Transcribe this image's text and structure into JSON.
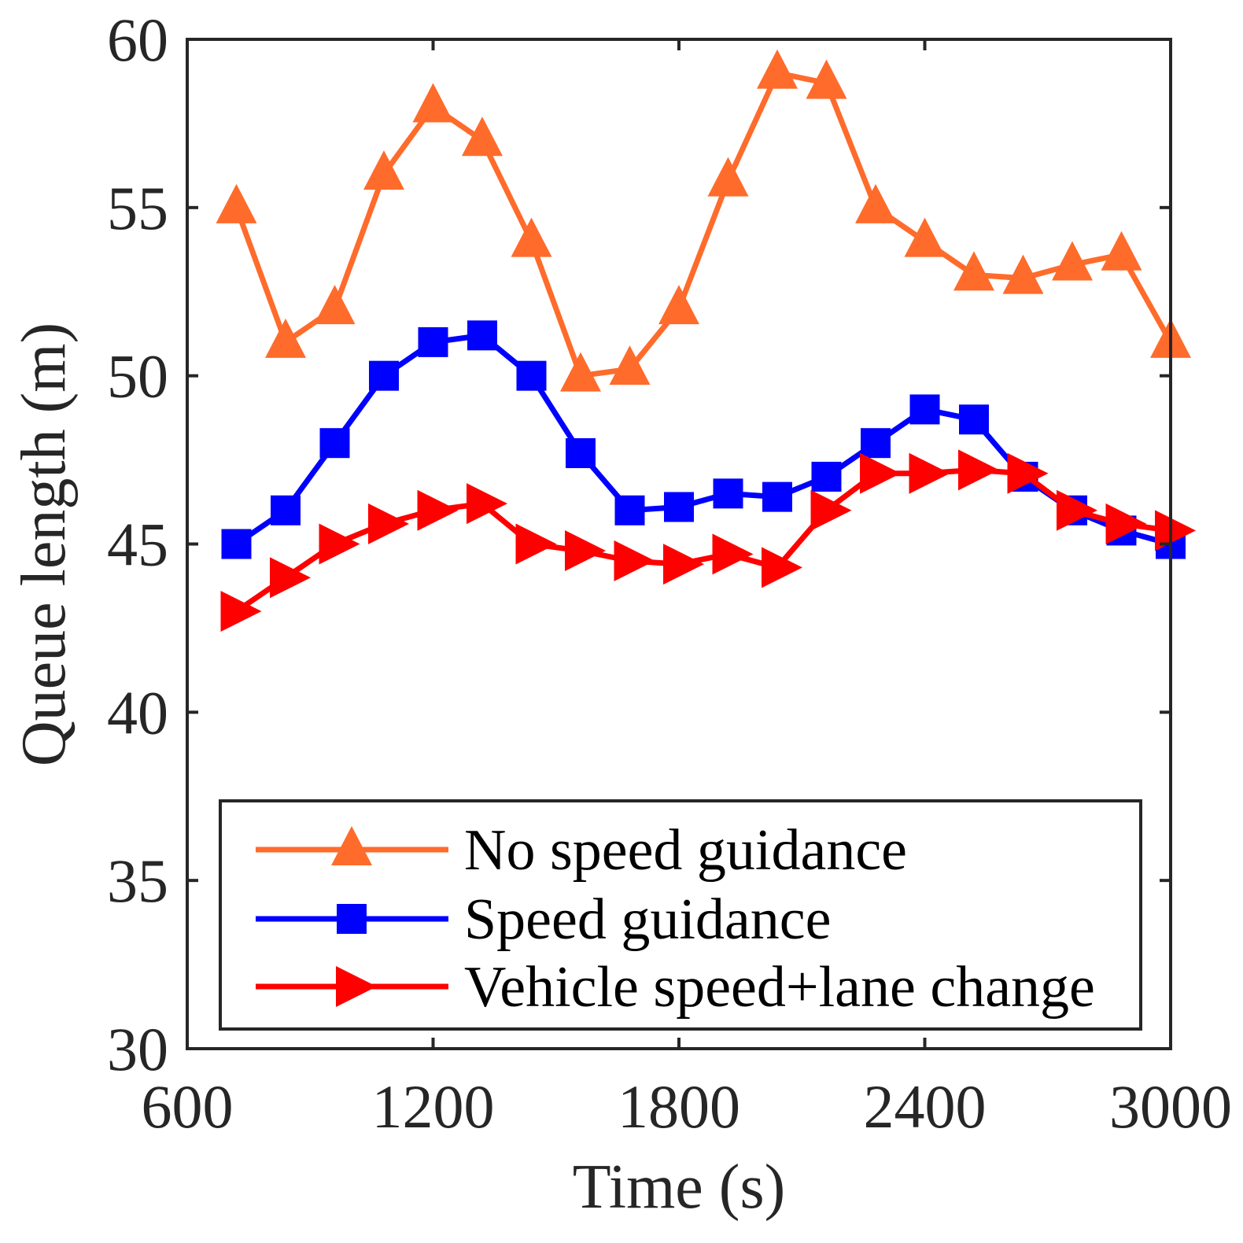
{
  "chart_data": {
    "type": "line",
    "title": "",
    "xlabel": "Time (s)",
    "ylabel": "Queue length (m)",
    "xlim": [
      600,
      3000
    ],
    "ylim": [
      30,
      60
    ],
    "xticks": [
      600,
      1200,
      1800,
      2400,
      3000
    ],
    "yticks": [
      30,
      35,
      40,
      45,
      50,
      55,
      60
    ],
    "grid": false,
    "legend_position": "bottom-right",
    "x": [
      720,
      840,
      960,
      1080,
      1200,
      1320,
      1440,
      1560,
      1680,
      1800,
      1920,
      2040,
      2160,
      2280,
      2400,
      2520,
      2640,
      2760,
      2880,
      3000
    ],
    "series": [
      {
        "name": "No speed guidance",
        "color": "#FF6B2B",
        "marker": "triangle-up",
        "values": [
          55.0,
          51.0,
          52.0,
          56.0,
          58.0,
          57.0,
          54.0,
          50.0,
          50.2,
          52.0,
          55.8,
          59.0,
          58.7,
          55.0,
          54.0,
          53.0,
          52.9,
          53.3,
          53.6,
          51.0
        ]
      },
      {
        "name": "Speed guidance",
        "color": "#0000FF",
        "marker": "square",
        "values": [
          45.0,
          46.0,
          48.0,
          50.0,
          51.0,
          51.2,
          50.0,
          47.7,
          46.0,
          46.1,
          46.5,
          46.4,
          47.0,
          48.0,
          49.0,
          48.7,
          47.0,
          46.0,
          45.4,
          45.0
        ]
      },
      {
        "name": "Vehicle speed+lane change",
        "color": "#FF0000",
        "marker": "triangle-right",
        "values": [
          43.0,
          44.0,
          45.0,
          45.6,
          46.0,
          46.2,
          45.0,
          44.8,
          44.5,
          44.4,
          44.7,
          44.3,
          46.0,
          47.1,
          47.1,
          47.2,
          47.1,
          46.0,
          45.6,
          45.4
        ]
      }
    ]
  }
}
